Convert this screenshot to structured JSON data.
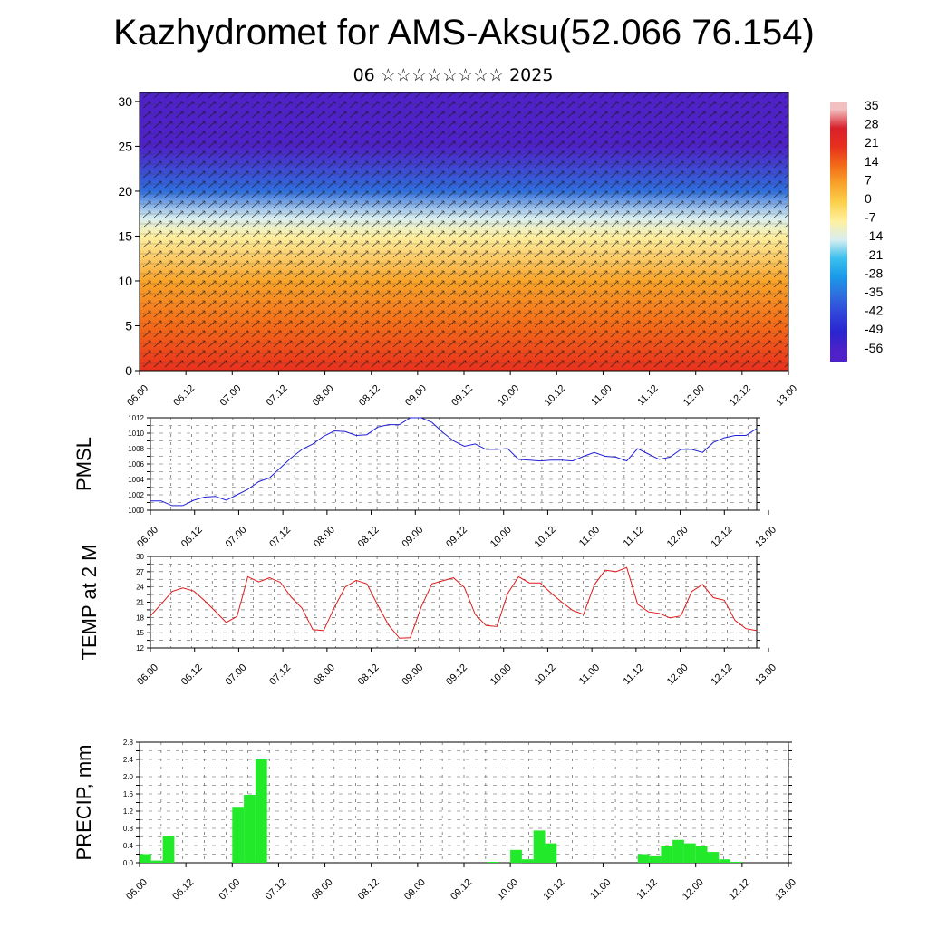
{
  "title": "Kazhydromet for AMS-Aksu(52.066 76.154)",
  "subtitle": "06 ☆☆☆☆☆☆☆☆ 2025",
  "time_labels": [
    "06.00",
    "06.12",
    "07.00",
    "07.12",
    "08.00",
    "08.12",
    "09.00",
    "09.12",
    "10.00",
    "10.12",
    "11.00",
    "11.12",
    "12.00",
    "12.12",
    "13.00"
  ],
  "chart_data": [
    {
      "type": "heatmap",
      "title": "",
      "xlabel": "",
      "ylabel": "",
      "y_ticks": [
        0,
        5,
        10,
        15,
        20,
        25,
        30
      ],
      "ylim": [
        0,
        31
      ],
      "colorbar_labels": [
        "35",
        "28",
        "21",
        "14",
        "7",
        "0",
        "-7",
        "-14",
        "-21",
        "-28",
        "-35",
        "-42",
        "-49",
        "-56"
      ],
      "colorbar_values": [
        35,
        28,
        21,
        14,
        7,
        0,
        -7,
        -14,
        -21,
        -28,
        -35,
        -42,
        -49,
        -56
      ],
      "profile_levels": [
        0,
        5,
        10,
        15,
        17,
        20,
        25,
        30
      ],
      "profile_values": [
        24,
        18,
        8,
        -4,
        -12,
        -30,
        -50,
        -56
      ],
      "colors": {
        "high": "#e0201a",
        "mid": "#ffe98a",
        "low": "#3c2ad8"
      }
    },
    {
      "type": "line",
      "ylabel": "PMSL",
      "ylim": [
        1000,
        1012
      ],
      "y_ticks": [
        "1000",
        "1002",
        "1004",
        "1006",
        "1008",
        "1010",
        "1012"
      ],
      "color": "#1f1fd8",
      "x": [
        0,
        3,
        6,
        9,
        12,
        15,
        18,
        21,
        24,
        27,
        30,
        33,
        36,
        39,
        42,
        45,
        48,
        51,
        54,
        57,
        60,
        63,
        66,
        69,
        72,
        75,
        78,
        81,
        84,
        87,
        90,
        93,
        96,
        99,
        102,
        105,
        108,
        111,
        114,
        117,
        120,
        123,
        126,
        129,
        132,
        135,
        138,
        141,
        144,
        147,
        150,
        153,
        156,
        159,
        162,
        165,
        168
      ],
      "values": [
        1001.2,
        1001.2,
        1000.6,
        1000.6,
        1001.3,
        1001.7,
        1001.8,
        1001.3,
        1002.0,
        1002.7,
        1003.7,
        1004.2,
        1005.5,
        1006.8,
        1007.9,
        1008.6,
        1009.6,
        1010.3,
        1010.2,
        1009.7,
        1009.8,
        1010.8,
        1011.1,
        1011.1,
        1012.0,
        1012.0,
        1011.4,
        1010.1,
        1009.0,
        1008.3,
        1008.6,
        1007.9,
        1007.9,
        1008.0,
        1006.6,
        1006.5,
        1006.4,
        1006.5,
        1006.5,
        1006.4,
        1007.0,
        1007.5,
        1007.0,
        1006.9,
        1006.4,
        1008.0,
        1007.3,
        1006.6,
        1006.9,
        1007.9,
        1007.9,
        1007.5,
        1008.8,
        1009.4,
        1009.7,
        1009.7,
        1010.6
      ]
    },
    {
      "type": "line",
      "ylabel": "TEMP at 2 M",
      "ylim": [
        12,
        30
      ],
      "y_ticks": [
        "12",
        "15",
        "18",
        "21",
        "24",
        "27",
        "30"
      ],
      "color": "#e01818",
      "x": [
        0,
        3,
        6,
        9,
        12,
        15,
        18,
        21,
        24,
        27,
        30,
        33,
        36,
        39,
        42,
        45,
        48,
        51,
        54,
        57,
        60,
        63,
        66,
        69,
        72,
        75,
        78,
        81,
        84,
        87,
        90,
        93,
        96,
        99,
        102,
        105,
        108,
        111,
        114,
        117,
        120,
        123,
        126,
        129,
        132,
        135,
        138,
        141,
        144,
        147,
        150,
        153,
        156,
        159,
        162,
        165,
        168
      ],
      "values": [
        18.3,
        20.6,
        23.1,
        23.8,
        23.2,
        21.3,
        19.2,
        17.0,
        18.2,
        26.0,
        25.0,
        25.8,
        24.9,
        22.0,
        19.8,
        15.6,
        15.4,
        20.0,
        24.0,
        25.3,
        24.6,
        20.4,
        16.5,
        13.9,
        14.0,
        20.0,
        24.6,
        25.2,
        25.8,
        23.9,
        18.6,
        16.4,
        16.2,
        22.7,
        26.0,
        24.8,
        24.8,
        22.8,
        21.0,
        19.4,
        18.6,
        24.4,
        27.3,
        27.0,
        27.8,
        20.6,
        19.1,
        18.8,
        17.9,
        18.3,
        23.1,
        24.5,
        21.9,
        21.4,
        17.4,
        15.8,
        15.4
      ]
    },
    {
      "type": "bar",
      "ylabel": "PRECIP, mm",
      "ylim": [
        0,
        2.8
      ],
      "y_ticks": [
        "0.0",
        "0.4",
        "0.8",
        "1.2",
        "1.6",
        "2.0",
        "2.4",
        "2.8"
      ],
      "color": "#22ea2a",
      "bin_hours": 3,
      "x": [
        3,
        6,
        9,
        27,
        30,
        33,
        93,
        99,
        102,
        105,
        108,
        132,
        135,
        138,
        141,
        144,
        147,
        150,
        153,
        156
      ],
      "values": [
        0.2,
        0.05,
        0.63,
        1.28,
        1.58,
        2.4,
        0.02,
        0.3,
        0.08,
        0.75,
        0.45,
        0.2,
        0.15,
        0.4,
        0.53,
        0.45,
        0.38,
        0.25,
        0.08,
        0.02
      ]
    }
  ]
}
